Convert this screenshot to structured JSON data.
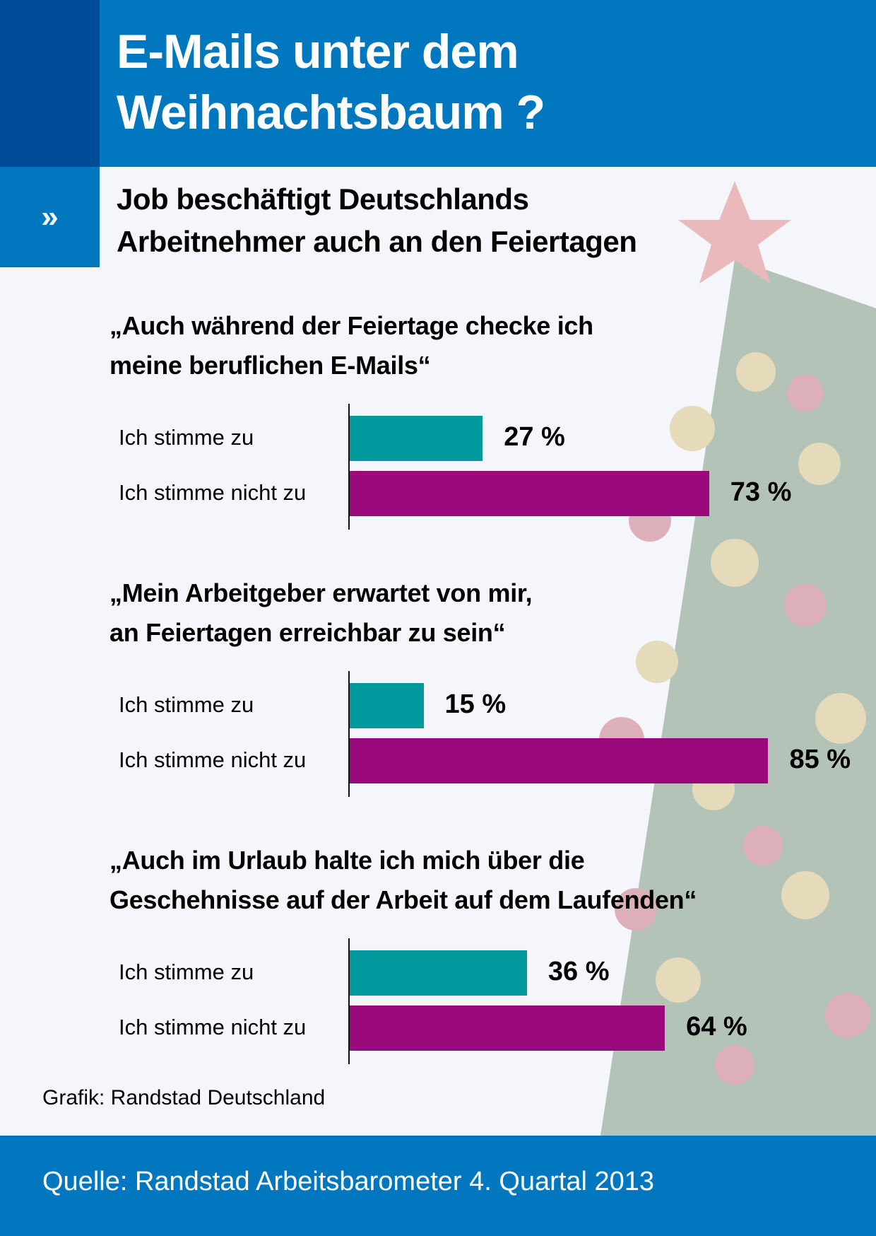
{
  "header": {
    "title_line1": "E-Mails unter dem",
    "title_line2": "Weihnachtsbaum ?",
    "marker": "»",
    "subtitle_line1": "Job beschäftigt Deutschlands",
    "subtitle_line2": "Arbeitnehmer auch an den Feiertagen"
  },
  "colors": {
    "agree": "#00999e",
    "disagree": "#9b0a7c",
    "brand_blue": "#0077be",
    "dark_blue": "#004b97"
  },
  "chart_data": {
    "type": "bar",
    "orientation": "horizontal",
    "xlim": [
      0,
      100
    ],
    "unit": "%",
    "groups": [
      {
        "question_line1": "„Auch während der Feiertage checke ich",
        "question_line2": "meine beruflichen E-Mails“",
        "categories": [
          "Ich stimme zu",
          "Ich stimme nicht zu"
        ],
        "values": [
          27,
          73
        ],
        "labels": [
          "27 %",
          "73 %"
        ]
      },
      {
        "question_line1": "„Mein Arbeitgeber erwartet von mir,",
        "question_line2": "an Feiertagen erreichbar zu sein“",
        "categories": [
          "Ich stimme zu",
          "Ich stimme nicht zu"
        ],
        "values": [
          15,
          85
        ],
        "labels": [
          "15 %",
          "85 %"
        ]
      },
      {
        "question_line1": "„Auch im Urlaub halte ich mich über die",
        "question_line2": "Geschehnisse auf der Arbeit auf dem Laufenden“",
        "categories": [
          "Ich stimme zu",
          "Ich stimme nicht zu"
        ],
        "values": [
          36,
          64
        ],
        "labels": [
          "36 %",
          "64 %"
        ]
      }
    ]
  },
  "credit": "Grafik: Randstad Deutschland",
  "footer": {
    "source": "Quelle: Randstad Arbeitsbarometer 4. Quartal 2013"
  }
}
